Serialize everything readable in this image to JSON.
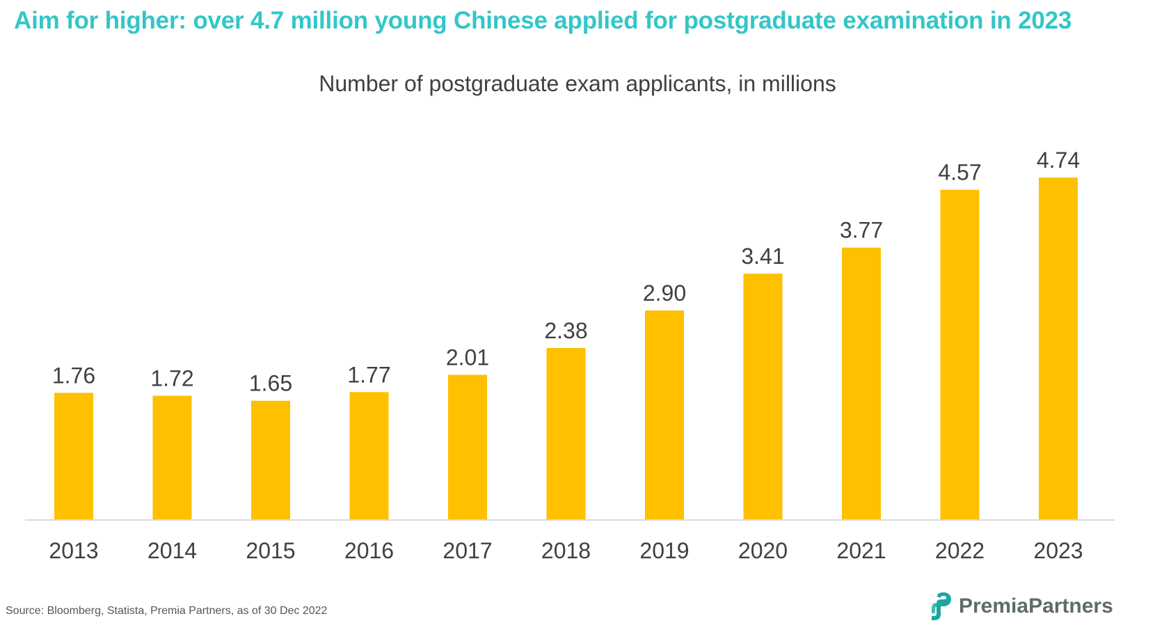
{
  "headline": "Aim for higher: over 4.7 million young Chinese applied for postgraduate examination in 2023",
  "source": "Source: Bloomberg, Statista, Premia Partners, as of 30 Dec 2022",
  "brand": {
    "name": "PremiaPartners",
    "logo_icon": "premia-logo-icon"
  },
  "colors": {
    "headline": "#33c6c8",
    "bar": "#ffc000",
    "text": "#404040",
    "axis": "#d9d9d9",
    "logo": "#1aa7a0"
  },
  "chart_data": {
    "type": "bar",
    "title": "Number of postgraduate exam applicants, in millions",
    "xlabel": "",
    "ylabel": "",
    "categories": [
      "2013",
      "2014",
      "2015",
      "2016",
      "2017",
      "2018",
      "2019",
      "2020",
      "2021",
      "2022",
      "2023"
    ],
    "values": [
      1.76,
      1.72,
      1.65,
      1.77,
      2.01,
      2.38,
      2.9,
      3.41,
      3.77,
      4.57,
      4.74
    ],
    "value_labels": [
      "1.76",
      "1.72",
      "1.65",
      "1.77",
      "2.01",
      "2.38",
      "2.90",
      "3.41",
      "3.77",
      "4.57",
      "4.74"
    ],
    "ylim": [
      0,
      5
    ],
    "grid": false,
    "legend": "none"
  }
}
